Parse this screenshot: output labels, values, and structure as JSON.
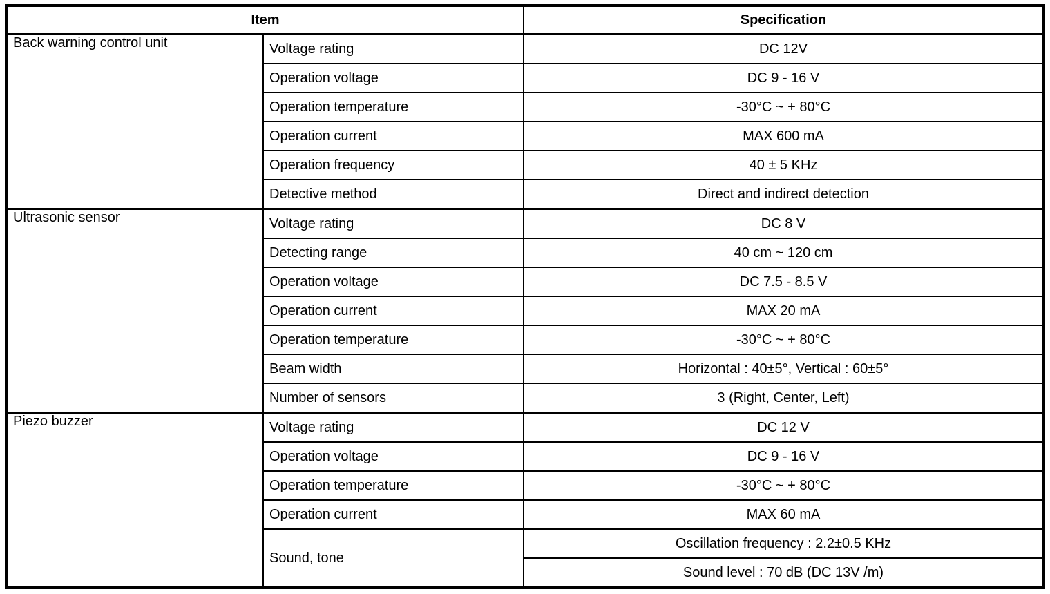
{
  "colors": {
    "border": "#000000",
    "background": "#ffffff",
    "text": "#000000"
  },
  "table": {
    "headers": {
      "item": "Item",
      "specification": "Specification"
    },
    "groups": [
      {
        "name": "Back warning control unit",
        "rows": [
          {
            "item": "Voltage rating",
            "specs": [
              "DC 12V"
            ]
          },
          {
            "item": "Operation voltage",
            "specs": [
              "DC 9 - 16 V"
            ]
          },
          {
            "item": "Operation temperature",
            "specs": [
              "-30°C ~ + 80°C"
            ]
          },
          {
            "item": "Operation current",
            "specs": [
              "MAX 600 mA"
            ]
          },
          {
            "item": "Operation frequency",
            "specs": [
              "40 ± 5 KHz"
            ]
          },
          {
            "item": "Detective method",
            "specs": [
              "Direct and indirect detection"
            ]
          }
        ]
      },
      {
        "name": "Ultrasonic sensor",
        "rows": [
          {
            "item": "Voltage rating",
            "specs": [
              "DC 8 V"
            ]
          },
          {
            "item": "Detecting range",
            "specs": [
              "40 cm ~ 120 cm"
            ]
          },
          {
            "item": "Operation voltage",
            "specs": [
              "DC 7.5 - 8.5 V"
            ]
          },
          {
            "item": "Operation current",
            "specs": [
              "MAX 20 mA"
            ]
          },
          {
            "item": "Operation temperature",
            "specs": [
              "-30°C ~ + 80°C"
            ]
          },
          {
            "item": "Beam width",
            "specs": [
              "Horizontal : 40±5°, Vertical : 60±5°"
            ]
          },
          {
            "item": "Number of sensors",
            "specs": [
              "3 (Right, Center, Left)"
            ]
          }
        ]
      },
      {
        "name": "Piezo buzzer",
        "rows": [
          {
            "item": "Voltage rating",
            "specs": [
              "DC 12 V"
            ]
          },
          {
            "item": "Operation voltage",
            "specs": [
              "DC 9 - 16 V"
            ]
          },
          {
            "item": "Operation temperature",
            "specs": [
              "-30°C ~ + 80°C"
            ]
          },
          {
            "item": "Operation current",
            "specs": [
              "MAX 60 mA"
            ]
          },
          {
            "item": "Sound, tone",
            "specs": [
              "Oscillation frequency : 2.2±0.5 KHz",
              "Sound level : 70 dB (DC 13V /m)"
            ]
          }
        ]
      }
    ]
  }
}
